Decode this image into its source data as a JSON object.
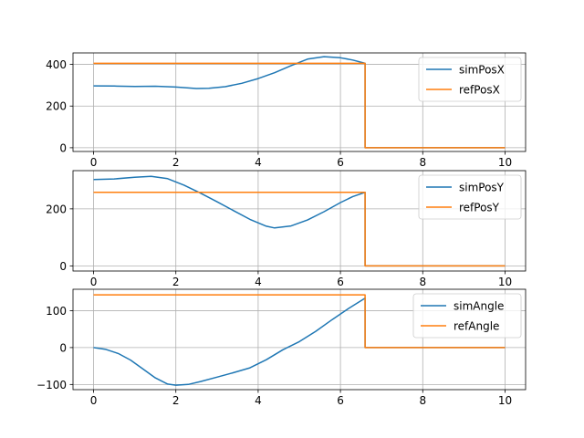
{
  "figure": {
    "background": "#ffffff"
  },
  "chart_data": [
    {
      "type": "line",
      "title": "",
      "xlabel": "",
      "ylabel": "",
      "xlim": [
        -0.5,
        10.5
      ],
      "ylim": [
        -18,
        455
      ],
      "xticks": [
        0,
        2,
        4,
        6,
        8,
        10
      ],
      "yticks": [
        0,
        200,
        400
      ],
      "grid": true,
      "legend": "upper right",
      "series": [
        {
          "name": "simPosX",
          "color": "#1f77b4",
          "x": [
            0,
            0.5,
            1,
            1.5,
            2,
            2.5,
            2.8,
            3.2,
            3.6,
            4,
            4.4,
            4.8,
            5.2,
            5.6,
            6,
            6.3,
            6.6,
            6.6,
            8,
            10
          ],
          "y": [
            297,
            296,
            294,
            295,
            291,
            284,
            285,
            293,
            309,
            332,
            360,
            394,
            425,
            437,
            432,
            421,
            405,
            0,
            0,
            0
          ]
        },
        {
          "name": "refPosX",
          "color": "#ff7f0e",
          "x": [
            0,
            6.6,
            6.6,
            10
          ],
          "y": [
            405,
            405,
            0,
            0
          ]
        }
      ]
    },
    {
      "type": "line",
      "title": "",
      "xlabel": "",
      "ylabel": "",
      "xlim": [
        -0.5,
        10.5
      ],
      "ylim": [
        -18,
        334
      ],
      "xticks": [
        0,
        2,
        4,
        6,
        8,
        10
      ],
      "yticks": [
        0,
        200
      ],
      "grid": true,
      "legend": "upper right",
      "series": [
        {
          "name": "simPosY",
          "color": "#1f77b4",
          "x": [
            0,
            0.5,
            1,
            1.4,
            1.8,
            2.2,
            2.6,
            3,
            3.4,
            3.8,
            4.2,
            4.4,
            4.8,
            5.2,
            5.6,
            6,
            6.3,
            6.6,
            6.6,
            8,
            10
          ],
          "y": [
            303,
            305,
            311,
            314,
            306,
            283,
            255,
            225,
            194,
            163,
            139,
            133,
            140,
            161,
            190,
            222,
            243,
            258,
            0,
            0,
            0
          ]
        },
        {
          "name": "refPosY",
          "color": "#ff7f0e",
          "x": [
            0,
            6.6,
            6.6,
            10
          ],
          "y": [
            258,
            258,
            0,
            0
          ]
        }
      ]
    },
    {
      "type": "line",
      "title": "",
      "xlabel": "",
      "ylabel": "",
      "xlim": [
        -0.5,
        10.5
      ],
      "ylim": [
        -114,
        158
      ],
      "xticks": [
        0,
        2,
        4,
        6,
        8,
        10
      ],
      "yticks": [
        -100,
        0,
        100
      ],
      "grid": true,
      "legend": "upper right",
      "series": [
        {
          "name": "simAngle",
          "color": "#1f77b4",
          "x": [
            0,
            0.3,
            0.6,
            0.9,
            1.2,
            1.5,
            1.8,
            2,
            2.3,
            2.6,
            3,
            3.4,
            3.8,
            4.2,
            4.6,
            5,
            5.4,
            5.8,
            6.2,
            6.6,
            6.6,
            8,
            10
          ],
          "y": [
            0,
            -5,
            -16,
            -34,
            -58,
            -82,
            -99,
            -102,
            -100,
            -92,
            -80,
            -68,
            -55,
            -33,
            -6,
            16,
            44,
            76,
            106,
            134,
            0,
            0,
            0
          ]
        },
        {
          "name": "refAngle",
          "color": "#ff7f0e",
          "x": [
            0,
            6.6,
            6.6,
            10
          ],
          "y": [
            143,
            143,
            0,
            0
          ]
        }
      ]
    }
  ]
}
